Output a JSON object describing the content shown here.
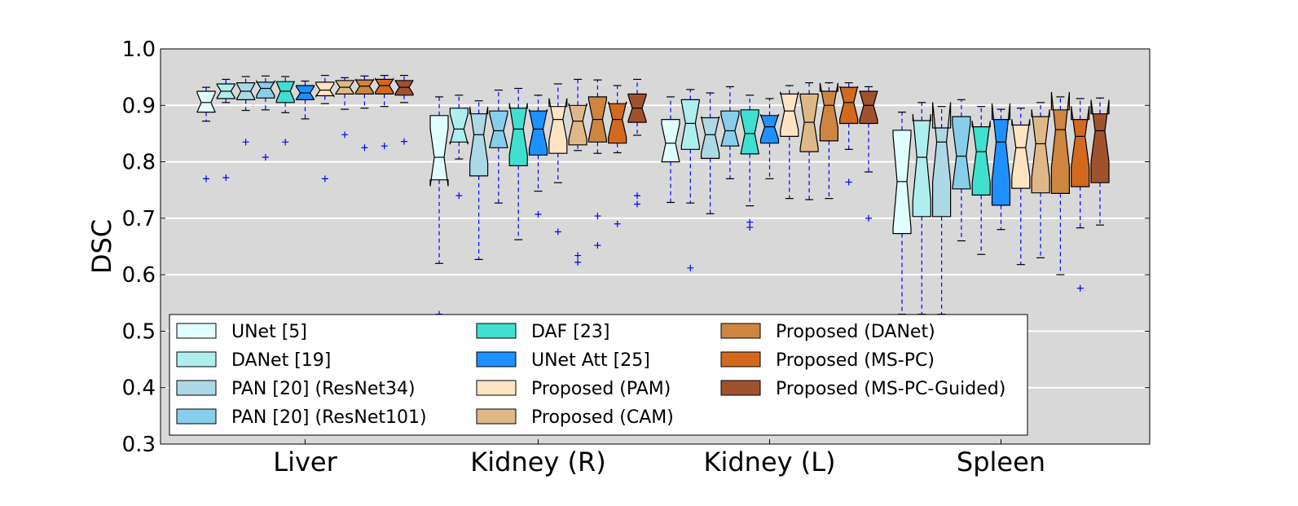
{
  "chart_data": {
    "type": "boxplot",
    "title": "",
    "xlabel": "",
    "ylabel": "DSC",
    "ylim": [
      0.3,
      1.0
    ],
    "yticks": [
      0.3,
      0.4,
      0.5,
      0.6,
      0.7,
      0.8,
      0.9,
      1.0
    ],
    "ytick_labels": [
      "0.3",
      "0.4",
      "0.5",
      "0.6",
      "0.7",
      "0.8",
      "0.9",
      "1.0"
    ],
    "grid": "horizontal",
    "background_color": "#d8d8d8",
    "whisker_color": "#0000ff",
    "legend_location": "lower-left",
    "groups": [
      "Liver",
      "Kidney (R)",
      "Kidney (L)",
      "Spleen"
    ],
    "methods": [
      {
        "name": "UNet [5]",
        "color": "#e0ffff"
      },
      {
        "name": "DANet [19]",
        "color": "#afeeee"
      },
      {
        "name": "PAN [20] (ResNet34)",
        "color": "#add8e6"
      },
      {
        "name": "PAN [20] (ResNet101)",
        "color": "#87ceeb"
      },
      {
        "name": "DAF [23]",
        "color": "#40e0d0"
      },
      {
        "name": "UNet Att [25]",
        "color": "#1e90ff"
      },
      {
        "name": "Proposed (PAM)",
        "color": "#ffe4c4"
      },
      {
        "name": "Proposed (CAM)",
        "color": "#deb887"
      },
      {
        "name": "Proposed (DANet)",
        "color": "#cd853f"
      },
      {
        "name": "Proposed (MS-PC)",
        "color": "#d2691e"
      },
      {
        "name": "Proposed (MS-PC-Guided)",
        "color": "#a0522d"
      }
    ],
    "boxes": [
      [
        {
          "whislo": 0.872,
          "q1": 0.888,
          "med": 0.905,
          "q3": 0.925,
          "whishi": 0.932,
          "fliers": [
            0.77
          ]
        },
        {
          "whislo": 0.905,
          "q1": 0.912,
          "med": 0.925,
          "q3": 0.938,
          "whishi": 0.946,
          "fliers": [
            0.772
          ]
        },
        {
          "whislo": 0.891,
          "q1": 0.91,
          "med": 0.925,
          "q3": 0.94,
          "whishi": 0.951,
          "fliers": [
            0.835
          ]
        },
        {
          "whislo": 0.892,
          "q1": 0.913,
          "med": 0.93,
          "q3": 0.941,
          "whishi": 0.952,
          "fliers": [
            0.808
          ]
        },
        {
          "whislo": 0.887,
          "q1": 0.905,
          "med": 0.925,
          "q3": 0.942,
          "whishi": 0.951,
          "fliers": [
            0.835
          ]
        },
        {
          "whislo": 0.876,
          "q1": 0.91,
          "med": 0.922,
          "q3": 0.935,
          "whishi": 0.943,
          "fliers": []
        },
        {
          "whislo": 0.903,
          "q1": 0.917,
          "med": 0.927,
          "q3": 0.941,
          "whishi": 0.953,
          "fliers": [
            0.77
          ]
        },
        {
          "whislo": 0.893,
          "q1": 0.92,
          "med": 0.932,
          "q3": 0.944,
          "whishi": 0.949,
          "fliers": [
            0.848
          ]
        },
        {
          "whislo": 0.895,
          "q1": 0.92,
          "med": 0.934,
          "q3": 0.945,
          "whishi": 0.952,
          "fliers": [
            0.825
          ]
        },
        {
          "whislo": 0.898,
          "q1": 0.92,
          "med": 0.935,
          "q3": 0.946,
          "whishi": 0.953,
          "fliers": [
            0.828
          ]
        },
        {
          "whislo": 0.905,
          "q1": 0.918,
          "med": 0.932,
          "q3": 0.944,
          "whishi": 0.953,
          "fliers": [
            0.836
          ]
        }
      ],
      [
        {
          "whislo": 0.62,
          "q1": 0.768,
          "med": 0.808,
          "q3": 0.882,
          "whishi": 0.915,
          "fliers": [
            0.53
          ]
        },
        {
          "whislo": 0.805,
          "q1": 0.835,
          "med": 0.858,
          "q3": 0.895,
          "whishi": 0.918,
          "fliers": [
            0.74
          ]
        },
        {
          "whislo": 0.627,
          "q1": 0.775,
          "med": 0.848,
          "q3": 0.885,
          "whishi": 0.908,
          "fliers": []
        },
        {
          "whislo": 0.727,
          "q1": 0.825,
          "med": 0.855,
          "q3": 0.89,
          "whishi": 0.927,
          "fliers": []
        },
        {
          "whislo": 0.662,
          "q1": 0.793,
          "med": 0.858,
          "q3": 0.895,
          "whishi": 0.93,
          "fliers": []
        },
        {
          "whislo": 0.748,
          "q1": 0.812,
          "med": 0.858,
          "q3": 0.89,
          "whishi": 0.918,
          "fliers": [
            0.707
          ]
        },
        {
          "whislo": 0.763,
          "q1": 0.815,
          "med": 0.875,
          "q3": 0.898,
          "whishi": 0.938,
          "fliers": [
            0.676
          ]
        },
        {
          "whislo": 0.82,
          "q1": 0.83,
          "med": 0.872,
          "q3": 0.9,
          "whishi": 0.946,
          "fliers": [
            0.634,
            0.622
          ]
        },
        {
          "whislo": 0.815,
          "q1": 0.835,
          "med": 0.875,
          "q3": 0.915,
          "whishi": 0.945,
          "fliers": [
            0.704,
            0.652
          ]
        },
        {
          "whislo": 0.816,
          "q1": 0.833,
          "med": 0.875,
          "q3": 0.903,
          "whishi": 0.935,
          "fliers": [
            0.69
          ]
        },
        {
          "whislo": 0.847,
          "q1": 0.87,
          "med": 0.895,
          "q3": 0.92,
          "whishi": 0.946,
          "fliers": [
            0.74,
            0.725
          ]
        }
      ],
      [
        {
          "whislo": 0.728,
          "q1": 0.8,
          "med": 0.833,
          "q3": 0.875,
          "whishi": 0.915,
          "fliers": []
        },
        {
          "whislo": 0.727,
          "q1": 0.822,
          "med": 0.868,
          "q3": 0.91,
          "whishi": 0.928,
          "fliers": [
            0.612
          ]
        },
        {
          "whislo": 0.708,
          "q1": 0.806,
          "med": 0.848,
          "q3": 0.878,
          "whishi": 0.922,
          "fliers": []
        },
        {
          "whislo": 0.77,
          "q1": 0.828,
          "med": 0.855,
          "q3": 0.89,
          "whishi": 0.933,
          "fliers": []
        },
        {
          "whislo": 0.722,
          "q1": 0.814,
          "med": 0.85,
          "q3": 0.892,
          "whishi": 0.918,
          "fliers": [
            0.693,
            0.684
          ]
        },
        {
          "whislo": 0.77,
          "q1": 0.833,
          "med": 0.862,
          "q3": 0.882,
          "whishi": 0.912,
          "fliers": []
        },
        {
          "whislo": 0.735,
          "q1": 0.845,
          "med": 0.89,
          "q3": 0.92,
          "whishi": 0.935,
          "fliers": []
        },
        {
          "whislo": 0.733,
          "q1": 0.818,
          "med": 0.87,
          "q3": 0.92,
          "whishi": 0.94,
          "fliers": []
        },
        {
          "whislo": 0.735,
          "q1": 0.837,
          "med": 0.9,
          "q3": 0.925,
          "whishi": 0.94,
          "fliers": []
        },
        {
          "whislo": 0.822,
          "q1": 0.868,
          "med": 0.905,
          "q3": 0.932,
          "whishi": 0.94,
          "fliers": [
            0.764
          ]
        },
        {
          "whislo": 0.782,
          "q1": 0.868,
          "med": 0.9,
          "q3": 0.925,
          "whishi": 0.933,
          "fliers": [
            0.7
          ]
        }
      ],
      [
        {
          "whislo": 0.53,
          "q1": 0.673,
          "med": 0.765,
          "q3": 0.856,
          "whishi": 0.888,
          "fliers": []
        },
        {
          "whislo": 0.53,
          "q1": 0.703,
          "med": 0.808,
          "q3": 0.873,
          "whishi": 0.905,
          "fliers": []
        },
        {
          "whislo": 0.53,
          "q1": 0.703,
          "med": 0.835,
          "q3": 0.86,
          "whishi": 0.898,
          "fliers": []
        },
        {
          "whislo": 0.66,
          "q1": 0.752,
          "med": 0.81,
          "q3": 0.88,
          "whishi": 0.91,
          "fliers": []
        },
        {
          "whislo": 0.636,
          "q1": 0.741,
          "med": 0.818,
          "q3": 0.862,
          "whishi": 0.898,
          "fliers": []
        },
        {
          "whislo": 0.68,
          "q1": 0.723,
          "med": 0.835,
          "q3": 0.875,
          "whishi": 0.893,
          "fliers": []
        },
        {
          "whislo": 0.618,
          "q1": 0.753,
          "med": 0.825,
          "q3": 0.865,
          "whishi": 0.895,
          "fliers": []
        },
        {
          "whislo": 0.63,
          "q1": 0.745,
          "med": 0.832,
          "q3": 0.88,
          "whishi": 0.905,
          "fliers": []
        },
        {
          "whislo": 0.6,
          "q1": 0.744,
          "med": 0.857,
          "q3": 0.892,
          "whishi": 0.915,
          "fliers": []
        },
        {
          "whislo": 0.683,
          "q1": 0.756,
          "med": 0.845,
          "q3": 0.875,
          "whishi": 0.912,
          "fliers": [
            0.576
          ]
        },
        {
          "whislo": 0.688,
          "q1": 0.763,
          "med": 0.855,
          "q3": 0.885,
          "whishi": 0.913,
          "fliers": []
        }
      ]
    ]
  }
}
